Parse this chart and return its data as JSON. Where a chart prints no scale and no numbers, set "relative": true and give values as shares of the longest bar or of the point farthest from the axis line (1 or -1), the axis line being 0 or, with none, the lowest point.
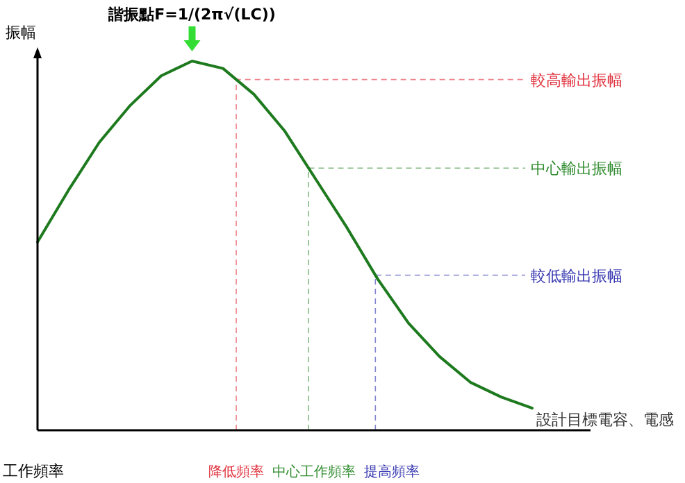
{
  "chart_data": {
    "type": "line",
    "relative": true,
    "xlabel": "工作頻率",
    "ylabel": "振幅",
    "annotations": [
      "諧振點F=1/(2π√(LC))",
      "設計目標電容、電感",
      "降低頻率",
      "中心工作頻率",
      "提高頻率"
    ],
    "categories": [
      null,
      null,
      null,
      null,
      null,
      null,
      null,
      null,
      null,
      null,
      null,
      null,
      null,
      null,
      null,
      null,
      null
    ],
    "series": [
      {
        "color": "#1e7a1e",
        "values": [
          0.51,
          0.65,
          0.78,
          0.88,
          0.96,
          1.0,
          0.98,
          0.91,
          0.81,
          0.68,
          0.55,
          0.41,
          0.29,
          0.2,
          0.13,
          0.09,
          0.06
        ]
      }
    ],
    "ref_lines": [
      {
        "axis": "y",
        "value": 0.95,
        "label": "較高輸出振幅",
        "color": "#e0303c",
        "line_style": "dashed"
      },
      {
        "axis": "y",
        "value": 0.71,
        "label": "中心輸出振幅",
        "color": "#2e8b2e",
        "line_style": "dashed"
      },
      {
        "axis": "y",
        "value": 0.42,
        "label": "較低輸出振幅",
        "color": "#3535b0",
        "line_style": "dashed"
      }
    ]
  }
}
